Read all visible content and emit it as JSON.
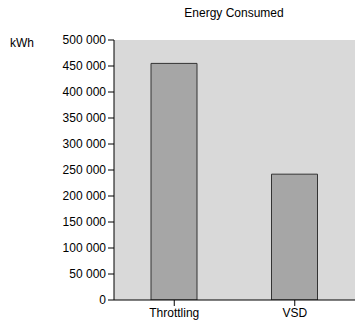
{
  "chart_data": {
    "type": "bar",
    "title": "Energy Consumed",
    "y_label": "kWh",
    "categories": [
      "Throttling",
      "VSD"
    ],
    "values": [
      455000,
      242000
    ],
    "color": "#a6a6a6",
    "ylim": [
      0,
      500000
    ],
    "yticks": [
      0,
      {
        "value": 50000,
        "label": "50 000"
      },
      {
        "value": 100000,
        "label": "100 000"
      },
      {
        "value": 150000,
        "label": "150 000"
      },
      {
        "value": 200000,
        "label": "200 000"
      },
      {
        "value": 250000,
        "label": "250 000"
      },
      {
        "value": 300000,
        "label": "300 000"
      },
      {
        "value": 350000,
        "label": "350 000"
      },
      {
        "value": 400000,
        "label": "400 000"
      },
      {
        "value": 450000,
        "label": "450 000"
      },
      {
        "value": 500000,
        "label": "500 000"
      }
    ],
    "grid": false
  }
}
